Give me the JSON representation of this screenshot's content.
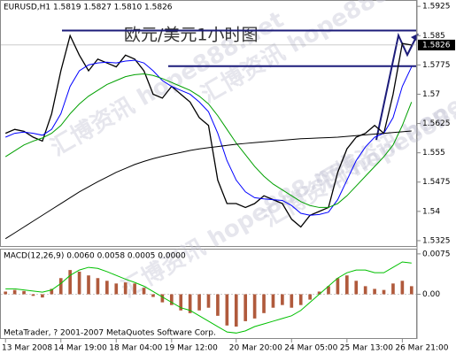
{
  "watermark": "汇博资讯 hope888.net",
  "chart_data": [
    {
      "type": "line",
      "header": "EURUSD,H1  1.5819 1.5827 1.5810 1.5826",
      "title": "欧元/美元1小时图",
      "ylim": [
        1.5309,
        1.5939
      ],
      "yticks": [
        1.5925,
        1.585,
        1.5775,
        1.57,
        1.5625,
        1.555,
        1.5475,
        1.54,
        1.5325
      ],
      "last_price": 1.5826,
      "hlines": [
        1.5863,
        1.5772
      ],
      "hline_color": "#1c1c7a",
      "series": [
        {
          "color": "#000000",
          "values": [
            1.56,
            1.561,
            1.5605,
            1.559,
            1.558,
            1.565,
            1.576,
            1.585,
            1.58,
            1.576,
            1.579,
            1.578,
            1.577,
            1.58,
            1.579,
            1.576,
            1.57,
            1.569,
            1.572,
            1.57,
            1.568,
            1.564,
            1.562,
            1.548,
            1.542,
            1.542,
            1.541,
            1.542,
            1.544,
            1.543,
            1.542,
            1.538,
            1.536,
            1.539,
            1.54,
            1.541,
            1.55,
            1.556,
            1.559,
            1.56,
            1.562,
            1.56,
            1.57,
            1.583,
            1.5826
          ]
        },
        {
          "color": "#0000ff",
          "values": [
            1.559,
            1.56,
            1.5603,
            1.56,
            1.5595,
            1.561,
            1.565,
            1.572,
            1.576,
            1.5775,
            1.578,
            1.5782,
            1.578,
            1.5785,
            1.5787,
            1.578,
            1.576,
            1.5735,
            1.572,
            1.571,
            1.57,
            1.568,
            1.5655,
            1.56,
            1.553,
            1.548,
            1.545,
            1.5435,
            1.5432,
            1.543,
            1.5428,
            1.5415,
            1.5395,
            1.539,
            1.5392,
            1.5398,
            1.543,
            1.548,
            1.553,
            1.5565,
            1.559,
            1.56,
            1.564,
            1.572,
            1.577
          ]
        },
        {
          "color": "#00a000",
          "values": [
            1.554,
            1.5555,
            1.557,
            1.558,
            1.5588,
            1.56,
            1.562,
            1.565,
            1.5675,
            1.5695,
            1.571,
            1.5725,
            1.5735,
            1.5745,
            1.575,
            1.5752,
            1.5748,
            1.574,
            1.573,
            1.572,
            1.571,
            1.5695,
            1.5675,
            1.5645,
            1.561,
            1.5575,
            1.5545,
            1.5515,
            1.549,
            1.547,
            1.5455,
            1.544,
            1.5425,
            1.5415,
            1.541,
            1.541,
            1.542,
            1.544,
            1.5465,
            1.549,
            1.5515,
            1.554,
            1.557,
            1.562,
            1.568
          ]
        },
        {
          "color": "#000000",
          "values": [
            1.533,
            1.5345,
            1.536,
            1.5375,
            1.539,
            1.5405,
            1.542,
            1.5435,
            1.545,
            1.5463,
            1.5476,
            1.5488,
            1.55,
            1.551,
            1.552,
            1.5528,
            1.5535,
            1.5541,
            1.5546,
            1.5551,
            1.5556,
            1.556,
            1.5563,
            1.5566,
            1.5569,
            1.5572,
            1.5574,
            1.5576,
            1.5578,
            1.558,
            1.5582,
            1.5584,
            1.5586,
            1.5587,
            1.5588,
            1.5589,
            1.559,
            1.5592,
            1.5594,
            1.5596,
            1.5598,
            1.56,
            1.5602,
            1.5604,
            1.5606
          ]
        }
      ]
    },
    {
      "type": "bar",
      "header": "MACD(12,26,9) 0.0060 0.0058 0.0005 0.0000",
      "footer": "MetaTrader, ? 2001-2007 MetaQuotes Software Corp.",
      "ylim": [
        -0.0083,
        0.0083
      ],
      "yticks": [
        0.0075,
        {
          "value": 0,
          "label": "0.00"
        }
      ],
      "categories": [
        "13 Mar 2008",
        null,
        null,
        null,
        null,
        null,
        "14 Mar 19:00",
        null,
        null,
        null,
        null,
        null,
        "18 Mar 04:00",
        null,
        null,
        null,
        null,
        null,
        "19 Mar 12:00",
        null,
        null,
        null,
        null,
        null,
        null,
        "20 Mar 20:00",
        null,
        null,
        null,
        null,
        null,
        "24 Mar 05:00",
        null,
        null,
        null,
        null,
        null,
        "25 Mar 13:00",
        null,
        null,
        null,
        null,
        null,
        "26 Mar 21:00",
        null
      ],
      "color": "#b05a3c",
      "values": [
        0.0005,
        0.0008,
        0.0006,
        -0.0003,
        -0.0006,
        0.001,
        0.003,
        0.0045,
        0.0042,
        0.0035,
        0.003,
        0.0025,
        0.002,
        0.0022,
        0.002,
        0.0012,
        -0.0005,
        -0.0015,
        -0.002,
        -0.003,
        -0.0035,
        -0.003,
        -0.0025,
        -0.004,
        -0.0058,
        -0.006,
        -0.005,
        -0.0045,
        -0.0035,
        -0.0025,
        -0.002,
        -0.0025,
        -0.002,
        -0.001,
        0.0005,
        0.0015,
        0.003,
        0.0035,
        0.0025,
        0.0015,
        0.001,
        0.0008,
        0.002,
        0.0025,
        0.0015
      ],
      "signal_color": "#00c000",
      "signal": [
        0.001,
        0.001,
        0.0008,
        0.0006,
        0.0004,
        0.0008,
        0.002,
        0.0035,
        0.0045,
        0.005,
        0.0048,
        0.0042,
        0.0035,
        0.0028,
        0.0022,
        0.0015,
        0.0005,
        -0.0005,
        -0.0015,
        -0.0025,
        -0.003,
        -0.004,
        -0.005,
        -0.006,
        -0.007,
        -0.0072,
        -0.0068,
        -0.006,
        -0.0055,
        -0.005,
        -0.0045,
        -0.004,
        -0.003,
        -0.0015,
        0.0,
        0.0015,
        0.003,
        0.004,
        0.0045,
        0.0045,
        0.004,
        0.004,
        0.005,
        0.006,
        0.0058
      ]
    }
  ]
}
